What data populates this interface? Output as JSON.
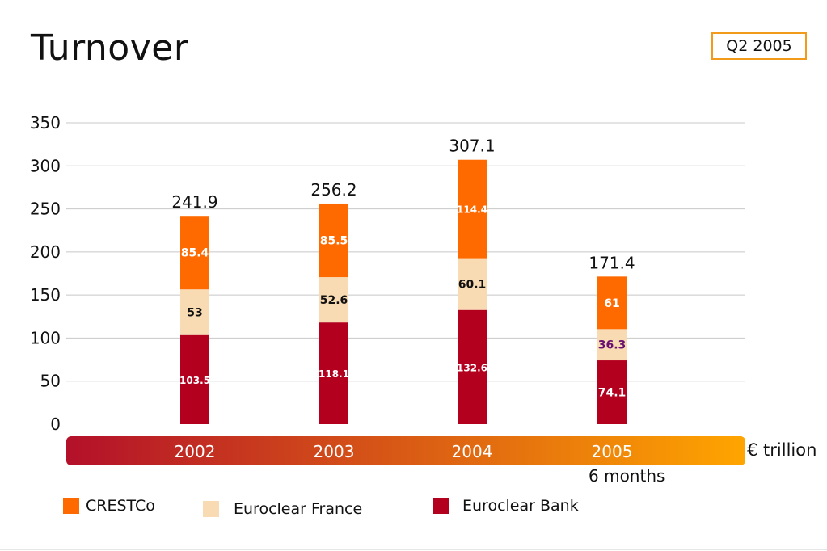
{
  "title": "Turnover",
  "period_badge": "Q2 2005",
  "unit_label": "€ trillion",
  "sub_label": "6 months",
  "colors": {
    "CRESTCo": "#ff6a00",
    "Euroclear France": "#f9dbb3",
    "Euroclear Bank": "#b3001f",
    "band_start": "#b3102a",
    "band_end": "#ffa500"
  },
  "legend": [
    "CRESTCo",
    "Euroclear France",
    "Euroclear Bank"
  ],
  "chart_data": {
    "type": "bar",
    "stacked": true,
    "categories": [
      "2002",
      "2003",
      "2004",
      "2005"
    ],
    "series": [
      {
        "name": "Euroclear Bank",
        "values": [
          103.5,
          118.1,
          132.6,
          74.1
        ],
        "labels": [
          "103.5",
          "118.1",
          "132.6",
          "74.1"
        ]
      },
      {
        "name": "Euroclear France",
        "values": [
          53,
          52.6,
          60.1,
          36.3
        ],
        "labels": [
          "53",
          "52.6",
          "60.1",
          "36.3"
        ]
      },
      {
        "name": "CRESTCo",
        "values": [
          85.4,
          85.5,
          114.4,
          61
        ],
        "labels": [
          "85.4",
          "85.5",
          "114.4",
          "61"
        ]
      }
    ],
    "totals": [
      "241.9",
      "256.2",
      "307.1",
      "171.4"
    ],
    "ylim": [
      0,
      350
    ],
    "yticks": [
      "0",
      "50",
      "100",
      "150",
      "200",
      "250",
      "300",
      "350"
    ],
    "grid": true,
    "legend_position": "bottom-left"
  }
}
